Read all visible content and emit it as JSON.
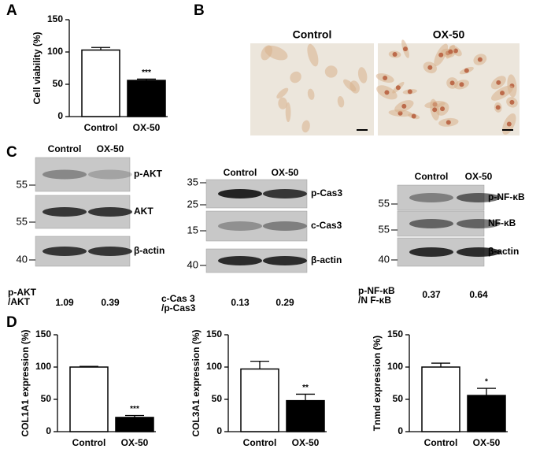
{
  "panel_labels": [
    "A",
    "B",
    "C",
    "D"
  ],
  "chart_data": [
    {
      "type": "bar",
      "ylabel": "Cell viability (%)",
      "categories": [
        "Control",
        "OX-50"
      ],
      "values": [
        103,
        56
      ],
      "errors": [
        4,
        2
      ],
      "significance": [
        null,
        "***"
      ],
      "colors": [
        "#ffffff",
        "#000000"
      ],
      "ylim": [
        0,
        150
      ],
      "yticks": [
        0,
        50,
        100,
        150
      ]
    },
    {
      "type": "bar",
      "ylabel": "COL1A1 expression (%)",
      "categories": [
        "Control",
        "OX-50"
      ],
      "values": [
        100,
        22
      ],
      "errors": [
        1,
        3
      ],
      "significance": [
        null,
        "***"
      ],
      "colors": [
        "#ffffff",
        "#000000"
      ],
      "ylim": [
        0,
        150
      ],
      "yticks": [
        0,
        50,
        100,
        150
      ]
    },
    {
      "type": "bar",
      "ylabel": "COL3A1 expression (%)",
      "categories": [
        "Control",
        "OX-50"
      ],
      "values": [
        97,
        48
      ],
      "errors": [
        12,
        10
      ],
      "significance": [
        null,
        "**"
      ],
      "colors": [
        "#ffffff",
        "#000000"
      ],
      "ylim": [
        0,
        150
      ],
      "yticks": [
        0,
        50,
        100,
        150
      ]
    },
    {
      "type": "bar",
      "ylabel": "Tnmd expression (%)",
      "categories": [
        "Control",
        "OX-50"
      ],
      "values": [
        100,
        56
      ],
      "errors": [
        6,
        11
      ],
      "significance": [
        null,
        "*"
      ],
      "colors": [
        "#ffffff",
        "#000000"
      ],
      "ylim": [
        0,
        150
      ],
      "yticks": [
        0,
        50,
        100,
        150
      ]
    }
  ],
  "images": {
    "titles": [
      "Control",
      "OX-50"
    ]
  },
  "blots": [
    {
      "lanes": [
        "Control",
        "OX-50"
      ],
      "rows": [
        {
          "label": "p-AKT",
          "marker": 55
        },
        {
          "label": "AKT",
          "marker": 55
        },
        {
          "label": "β-actin",
          "marker": 40
        }
      ],
      "ratio_label": [
        "p-AKT",
        "/AKT"
      ],
      "ratios": [
        1.09,
        0.39
      ]
    },
    {
      "lanes": [
        "Control",
        "OX-50"
      ],
      "rows": [
        {
          "label": "p-Cas3",
          "markers": [
            35,
            25
          ]
        },
        {
          "label": "c-Cas3",
          "markers": [
            15
          ]
        },
        {
          "label": "β-actin",
          "markers": [
            40
          ]
        }
      ],
      "ratio_label": [
        "c-Cas 3",
        "/p-Cas3"
      ],
      "ratios": [
        0.13,
        0.29
      ]
    },
    {
      "lanes": [
        "Control",
        "OX-50"
      ],
      "rows": [
        {
          "label": "p-NF-κB",
          "marker": 55
        },
        {
          "label": "NF-κB",
          "marker": 55
        },
        {
          "label": "β-actin",
          "marker": 40
        }
      ],
      "ratio_label": [
        "p-NF-κB",
        "/N F-κB"
      ],
      "ratios": [
        0.37,
        0.64
      ]
    }
  ]
}
